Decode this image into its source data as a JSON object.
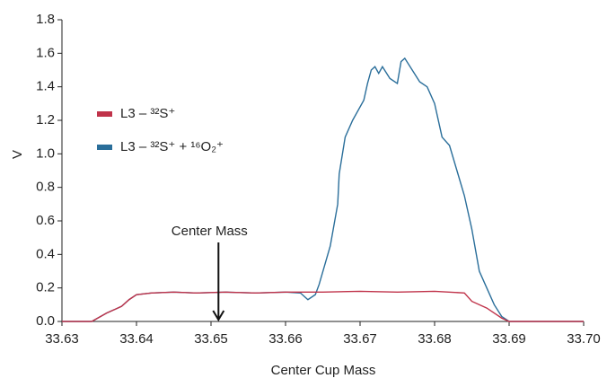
{
  "chart_data": {
    "type": "line",
    "x_label": "Center Cup Mass",
    "y_label": "V",
    "annotation": {
      "text": "Center Mass",
      "x": 33.651
    },
    "xlim": [
      33.63,
      33.7
    ],
    "ylim": [
      0,
      1.8
    ],
    "xticks": [
      33.63,
      33.64,
      33.65,
      33.66,
      33.67,
      33.68,
      33.69,
      {
        "value": 33.7,
        "label": "33.70"
      }
    ],
    "yticks": [
      {
        "value": 0,
        "label": "0.0"
      },
      0.2,
      0.4,
      0.6,
      0.8,
      {
        "value": 1.0,
        "label": "1.0"
      },
      1.2,
      1.4,
      1.6,
      1.8
    ],
    "series": [
      {
        "name": "L3 – ³²S⁺ + ¹⁶O₂⁺",
        "color": "#2a6e9a",
        "x": [
          33.63,
          33.634,
          33.636,
          33.638,
          33.639,
          33.64,
          33.642,
          33.645,
          33.648,
          33.652,
          33.656,
          33.66,
          33.662,
          33.663,
          33.664,
          33.6645,
          33.666,
          33.667,
          33.6672,
          33.668,
          33.669,
          33.6705,
          33.671,
          33.6715,
          33.672,
          33.6725,
          33.673,
          33.674,
          33.675,
          33.6755,
          33.676,
          33.677,
          33.678,
          33.679,
          33.68,
          33.681,
          33.682,
          33.683,
          33.684,
          33.685,
          33.686,
          33.687,
          33.688,
          33.689,
          33.69,
          33.7
        ],
        "values": [
          0,
          0,
          0.05,
          0.09,
          0.13,
          0.16,
          0.17,
          0.175,
          0.17,
          0.175,
          0.17,
          0.175,
          0.17,
          0.13,
          0.16,
          0.22,
          0.45,
          0.7,
          0.88,
          1.1,
          1.2,
          1.32,
          1.42,
          1.5,
          1.52,
          1.48,
          1.52,
          1.45,
          1.42,
          1.55,
          1.57,
          1.5,
          1.43,
          1.4,
          1.3,
          1.1,
          1.05,
          0.9,
          0.75,
          0.55,
          0.3,
          0.2,
          0.1,
          0.03,
          0,
          0
        ]
      },
      {
        "name": "L3 – ³²S⁺",
        "color": "#c0334a",
        "x": [
          33.63,
          33.634,
          33.636,
          33.638,
          33.639,
          33.64,
          33.642,
          33.645,
          33.648,
          33.652,
          33.656,
          33.66,
          33.665,
          33.67,
          33.675,
          33.68,
          33.684,
          33.685,
          33.687,
          33.689,
          33.69,
          33.7
        ],
        "values": [
          0,
          0,
          0.05,
          0.09,
          0.13,
          0.16,
          0.17,
          0.175,
          0.17,
          0.175,
          0.17,
          0.175,
          0.175,
          0.18,
          0.175,
          0.18,
          0.17,
          0.12,
          0.08,
          0.02,
          0,
          0
        ]
      }
    ],
    "legend": "left"
  }
}
